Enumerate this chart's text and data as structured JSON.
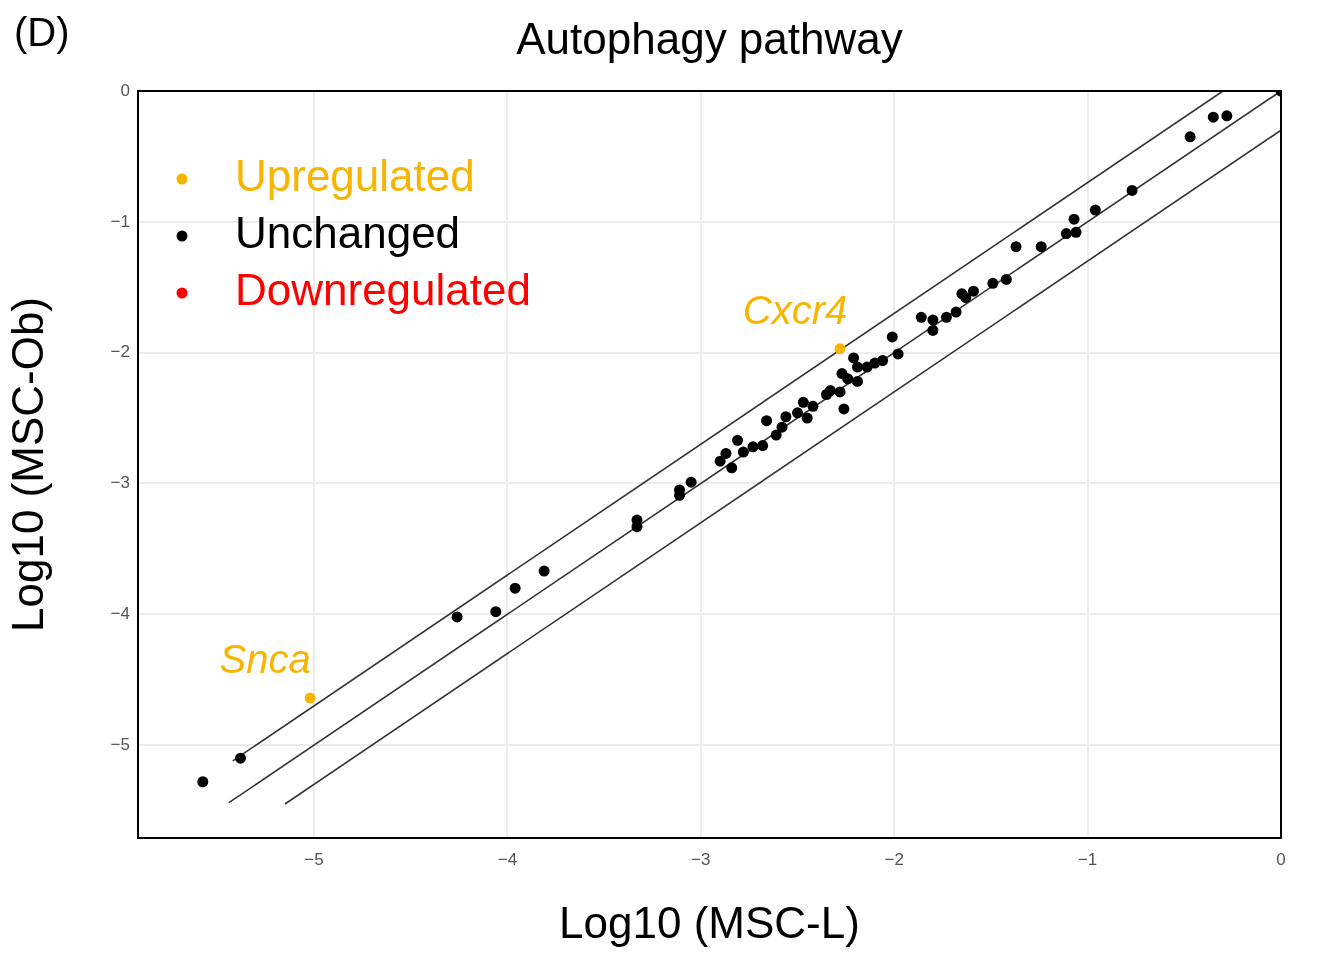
{
  "chart_data": {
    "type": "scatter",
    "title": "Autophagy pathway",
    "xlabel": "Log10 (MSC-L)",
    "ylabel": "Log10 (MSC-Ob)",
    "annotations": [
      "(D)",
      {
        "text": "Snca",
        "x": -5.02,
        "y": -4.64
      },
      {
        "text": "Cxcr4",
        "x": -2.28,
        "y": -1.97
      }
    ],
    "xlim": [
      -5.91,
      0
    ],
    "ylim": [
      -5.71,
      0
    ],
    "xticks": [
      {
        "value": -5,
        "label": "−5"
      },
      {
        "value": -4,
        "label": "−4"
      },
      {
        "value": -3,
        "label": "−3"
      },
      {
        "value": -2,
        "label": "−2"
      },
      {
        "value": -1,
        "label": "−1"
      },
      0
    ],
    "yticks": [
      {
        "value": -5,
        "label": "−5"
      },
      {
        "value": -4,
        "label": "−4"
      },
      {
        "value": -3,
        "label": "−3"
      },
      {
        "value": -2,
        "label": "−2"
      },
      {
        "value": -1,
        "label": "−1"
      },
      0
    ],
    "grid": true,
    "legend": "top left",
    "marker": "circle",
    "series": [
      {
        "name": "Upregulated",
        "color": "#f7b500",
        "x": [
          -5.02,
          -2.28
        ],
        "values": [
          -4.64,
          -1.97
        ]
      },
      {
        "name": "Unchanged",
        "color": "#000000",
        "x": [
          -5.575,
          -5.38,
          -4.26,
          -4.06,
          -3.96,
          -3.81,
          -3.33,
          -3.33,
          -3.11,
          -3.11,
          -3.05,
          -2.9,
          -2.84,
          -2.87,
          -2.81,
          -2.78,
          -2.73,
          -2.68,
          -2.66,
          -2.61,
          -2.58,
          -2.56,
          -2.5,
          -2.47,
          -2.45,
          -2.42,
          -2.35,
          -2.33,
          -2.28,
          -2.26,
          -2.27,
          -2.24,
          -2.21,
          -2.19,
          -2.19,
          -2.14,
          -2.1,
          -2.06,
          -2.01,
          -1.98,
          -1.86,
          -1.8,
          -1.8,
          -1.73,
          -1.68,
          -1.65,
          -1.63,
          -1.59,
          -1.49,
          -1.42,
          -1.37,
          -1.24,
          -1.11,
          -1.06,
          -1.07,
          -0.96,
          -0.77,
          -0.47,
          -0.35,
          -0.28,
          0
        ],
        "values": [
          -5.28,
          -5.1,
          -4.02,
          -3.98,
          -3.8,
          -3.67,
          -3.28,
          -3.33,
          -3.05,
          -3.09,
          -2.99,
          -2.83,
          -2.88,
          -2.77,
          -2.67,
          -2.76,
          -2.72,
          -2.71,
          -2.52,
          -2.63,
          -2.57,
          -2.49,
          -2.46,
          -2.38,
          -2.5,
          -2.41,
          -2.32,
          -2.29,
          -2.3,
          -2.43,
          -2.16,
          -2.2,
          -2.04,
          -2.11,
          -2.22,
          -2.11,
          -2.08,
          -2.06,
          -1.88,
          -2.01,
          -1.73,
          -1.75,
          -1.83,
          -1.73,
          -1.69,
          -1.55,
          -1.58,
          -1.53,
          -1.47,
          -1.44,
          -1.19,
          -1.19,
          -1.09,
          -1.08,
          -0.98,
          -0.91,
          -0.76,
          -0.35,
          -0.2,
          -0.19,
          0
        ]
      },
      {
        "name": "Downregulated",
        "color": "#ff0000"
      },
      {
        "type": "line",
        "color": "#333333",
        "marker": "none",
        "line_style": "solid",
        "x": [
          -5.42,
          -0.3
        ],
        "values": [
          -5.12,
          0
        ]
      },
      {
        "type": "line",
        "color": "#333333",
        "marker": "none",
        "line_style": "solid",
        "x": [
          -5.44,
          0
        ],
        "values": [
          -5.44,
          0
        ]
      },
      {
        "type": "line",
        "color": "#333333",
        "marker": "none",
        "line_style": "solid",
        "x": [
          -5.15,
          0
        ],
        "values": [
          -5.45,
          -0.3
        ]
      }
    ]
  }
}
